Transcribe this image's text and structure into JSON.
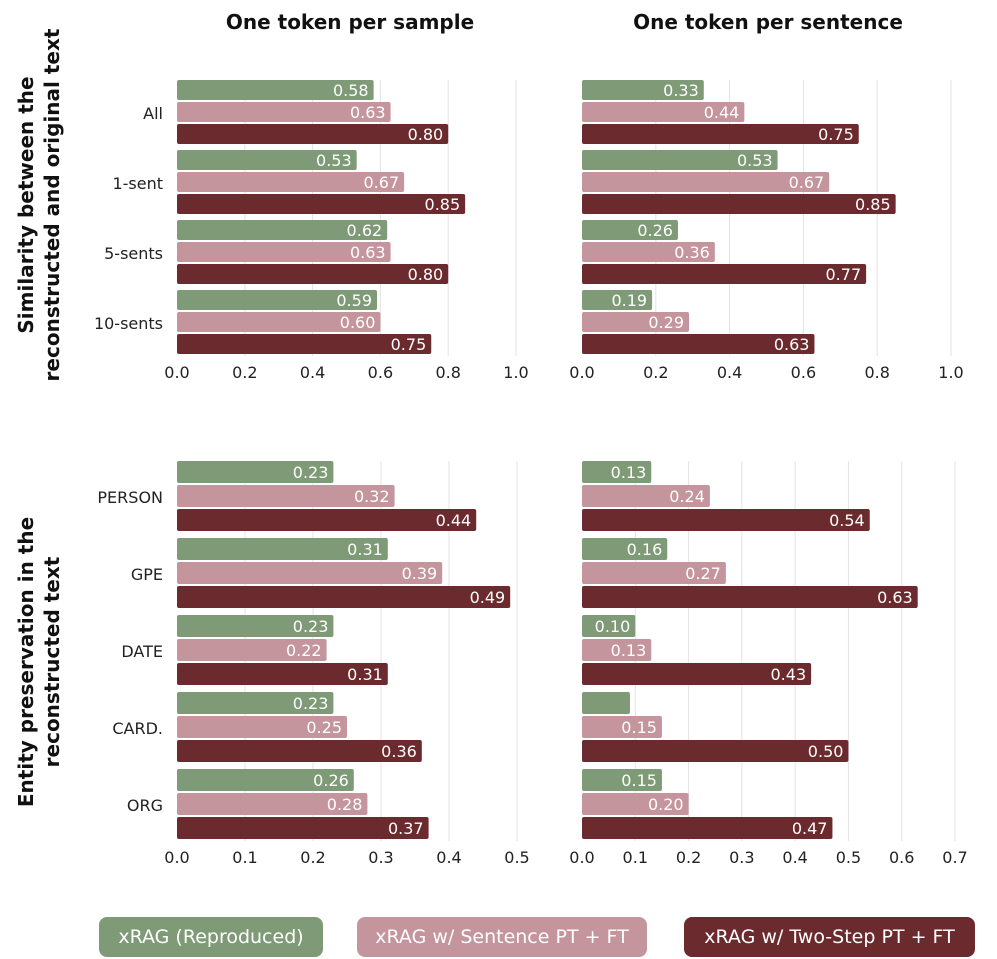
{
  "colors": {
    "xrag": "#7e9a76",
    "sentence": "#c4959c",
    "twostep": "#6b2b2e"
  },
  "legend": [
    {
      "label": "xRAG (Reproduced)",
      "color": "#7e9a76"
    },
    {
      "label": "xRAG w/ Sentence PT + FT",
      "color": "#c4959c"
    },
    {
      "label": "xRAG w/ Two-Step PT + FT",
      "color": "#6b2b2e"
    }
  ],
  "column_titles": [
    "One token per sample",
    "One token per sentence"
  ],
  "row_titles": [
    [
      "Similarity between the",
      "reconstructed and original text"
    ],
    [
      "Entity preservation in the",
      "reconstructed text"
    ]
  ],
  "chart_data": [
    {
      "type": "bar",
      "orientation": "horizontal",
      "title": "One token per sample",
      "ylabel": "Similarity between the reconstructed and original text",
      "categories": [
        "All",
        "1-sent",
        "5-sents",
        "10-sents"
      ],
      "xlim": [
        0.0,
        1.0
      ],
      "xticks": [
        "0.0",
        "0.2",
        "0.4",
        "0.6",
        "0.8",
        "1.0"
      ],
      "series": [
        {
          "name": "xRAG (Reproduced)",
          "values": [
            0.58,
            0.53,
            0.62,
            0.59
          ],
          "labels": [
            "0.58",
            "0.53",
            "0.62",
            "0.59"
          ]
        },
        {
          "name": "xRAG w/ Sentence PT + FT",
          "values": [
            0.63,
            0.67,
            0.63,
            0.6
          ],
          "labels": [
            "0.63",
            "0.67",
            "0.63",
            "0.60"
          ]
        },
        {
          "name": "xRAG w/ Two-Step PT + FT",
          "values": [
            0.8,
            0.85,
            0.8,
            0.75
          ],
          "labels": [
            "0.80",
            "0.85",
            "0.80",
            "0.75"
          ]
        }
      ]
    },
    {
      "type": "bar",
      "orientation": "horizontal",
      "title": "One token per sentence",
      "ylabel": "Similarity between the reconstructed and original text",
      "categories": [
        "All",
        "1-sent",
        "5-sents",
        "10-sents"
      ],
      "xlim": [
        0.0,
        1.0
      ],
      "xticks": [
        "0.0",
        "0.2",
        "0.4",
        "0.6",
        "0.8",
        "1.0"
      ],
      "series": [
        {
          "name": "xRAG (Reproduced)",
          "values": [
            0.33,
            0.53,
            0.26,
            0.19
          ],
          "labels": [
            "0.33",
            "0.53",
            "0.26",
            "0.19"
          ]
        },
        {
          "name": "xRAG w/ Sentence PT + FT",
          "values": [
            0.44,
            0.67,
            0.36,
            0.29
          ],
          "labels": [
            "0.44",
            "0.67",
            "0.36",
            "0.29"
          ]
        },
        {
          "name": "xRAG w/ Two-Step PT + FT",
          "values": [
            0.75,
            0.85,
            0.77,
            0.63
          ],
          "labels": [
            "0.75",
            "0.85",
            "0.77",
            "0.63"
          ]
        }
      ]
    },
    {
      "type": "bar",
      "orientation": "horizontal",
      "title": "One token per sample",
      "ylabel": "Entity preservation in the reconstructed text",
      "categories": [
        "PERSON",
        "GPE",
        "DATE",
        "CARD.",
        "ORG"
      ],
      "xlim": [
        0.0,
        0.5
      ],
      "xticks": [
        "0.0",
        "0.1",
        "0.2",
        "0.3",
        "0.4",
        "0.5"
      ],
      "series": [
        {
          "name": "xRAG (Reproduced)",
          "values": [
            0.23,
            0.31,
            0.23,
            0.23,
            0.26
          ],
          "labels": [
            "0.23",
            "0.31",
            "0.23",
            "0.23",
            "0.26"
          ]
        },
        {
          "name": "xRAG w/ Sentence PT + FT",
          "values": [
            0.32,
            0.39,
            0.22,
            0.25,
            0.28
          ],
          "labels": [
            "0.32",
            "0.39",
            "0.22",
            "0.25",
            "0.28"
          ]
        },
        {
          "name": "xRAG w/ Two-Step PT + FT",
          "values": [
            0.44,
            0.49,
            0.31,
            0.36,
            0.37
          ],
          "labels": [
            "0.44",
            "0.49",
            "0.31",
            "0.36",
            "0.37"
          ]
        }
      ]
    },
    {
      "type": "bar",
      "orientation": "horizontal",
      "title": "One token per sentence",
      "ylabel": "Entity preservation in the reconstructed text",
      "categories": [
        "PERSON",
        "GPE",
        "DATE",
        "CARD.",
        "ORG"
      ],
      "xlim": [
        0.0,
        0.7
      ],
      "xticks": [
        "0.0",
        "0.1",
        "0.2",
        "0.3",
        "0.4",
        "0.5",
        "0.6",
        "0.7"
      ],
      "series": [
        {
          "name": "xRAG (Reproduced)",
          "values": [
            0.13,
            0.16,
            0.1,
            0.09,
            0.15
          ],
          "labels": [
            "0.13",
            "0.16",
            "0.10",
            "",
            "0.15"
          ]
        },
        {
          "name": "xRAG w/ Sentence PT + FT",
          "values": [
            0.24,
            0.27,
            0.13,
            0.15,
            0.2
          ],
          "labels": [
            "0.24",
            "0.27",
            "0.13",
            "0.15",
            "0.20"
          ]
        },
        {
          "name": "xRAG w/ Two-Step PT + FT",
          "values": [
            0.54,
            0.63,
            0.43,
            0.5,
            0.47
          ],
          "labels": [
            "0.54",
            "0.63",
            "0.43",
            "0.50",
            "0.47"
          ]
        }
      ]
    }
  ]
}
